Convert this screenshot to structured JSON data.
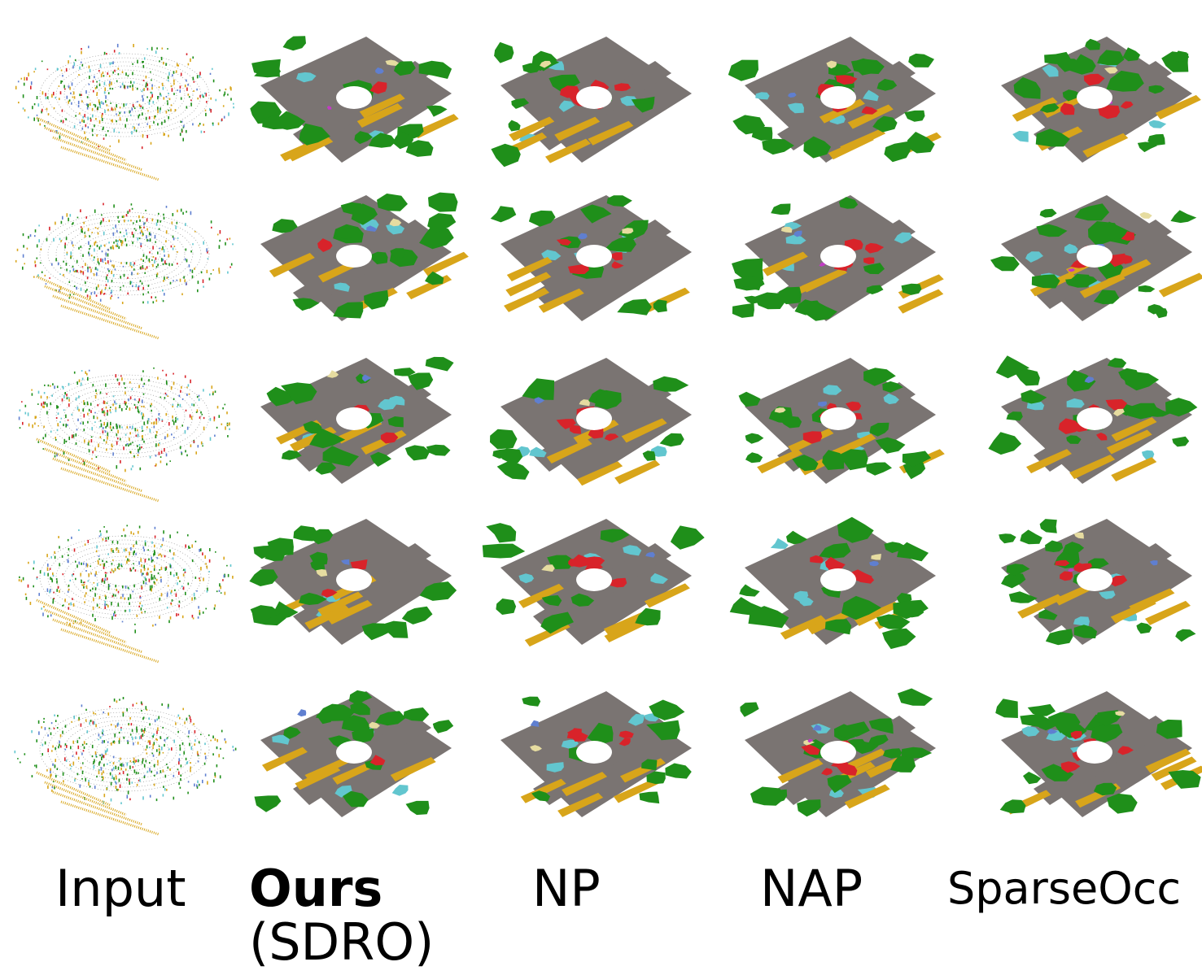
{
  "columns": [
    {
      "id": "input",
      "label": "Input",
      "bold": false,
      "sub": ""
    },
    {
      "id": "ours",
      "label": "Ours",
      "bold": true,
      "sub": "(SDRO)"
    },
    {
      "id": "np",
      "label": "NP",
      "bold": false,
      "sub": ""
    },
    {
      "id": "nap",
      "label": "NAP",
      "bold": false,
      "sub": ""
    },
    {
      "id": "sparseocc",
      "label": "SparseOcc",
      "bold": false,
      "sub": ""
    }
  ],
  "row_count": 5,
  "palette": {
    "road": "#7a7472",
    "vegetation": "#1f8f1a",
    "building": "#d8a51a",
    "sidewalk": "#62c6cf",
    "car": "#d8232a",
    "terrain": "#e6dca0",
    "pole": "#e0683a",
    "fence": "#5f7fd0",
    "person": "#c13cc4",
    "unknown": "#111111"
  }
}
